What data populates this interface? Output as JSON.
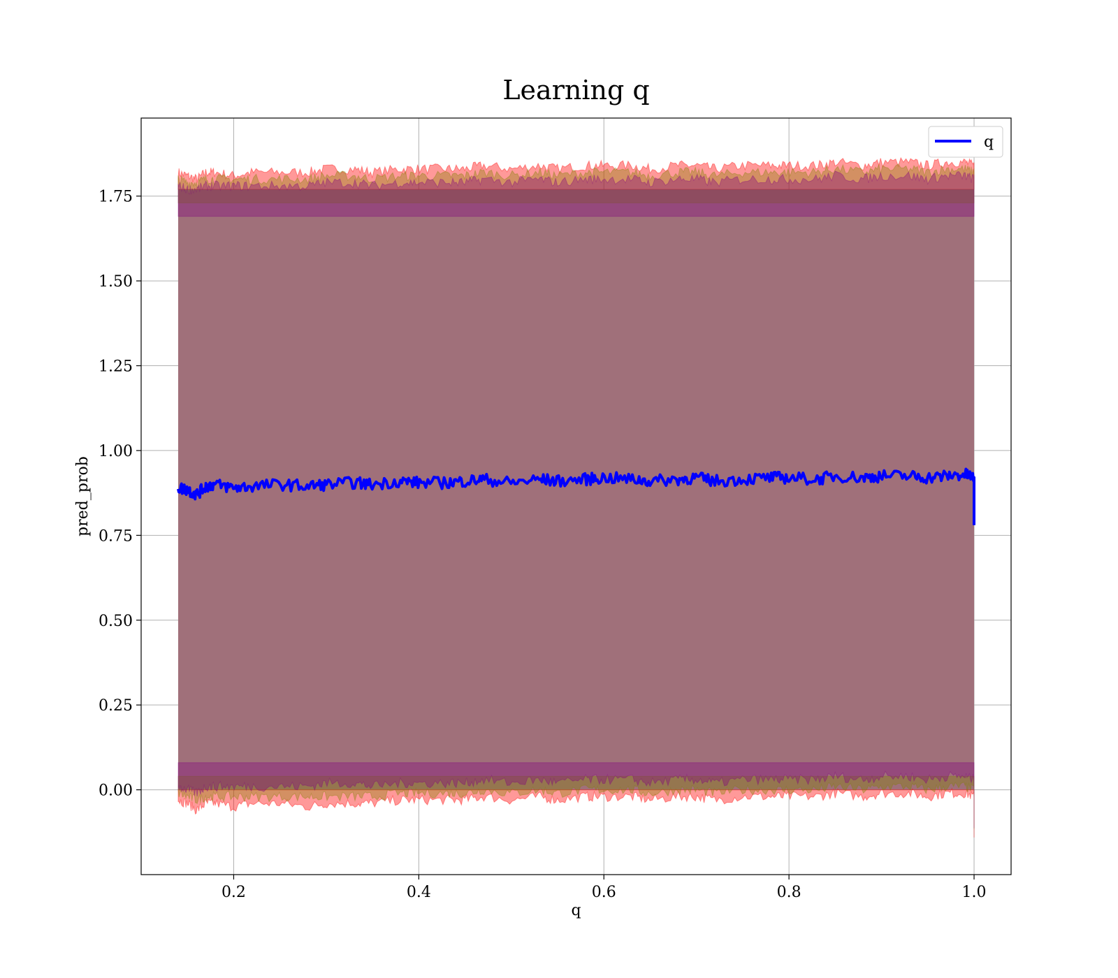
{
  "chart_data": {
    "type": "line",
    "title": "Learning q",
    "xlabel": "q",
    "ylabel": "pred_prob",
    "xlim": [
      0.1,
      1.04
    ],
    "ylim": [
      -0.25,
      1.98
    ],
    "xticks": [
      0.2,
      0.4,
      0.6,
      0.8,
      1.0
    ],
    "xtick_labels": [
      "0.2",
      "0.4",
      "0.6",
      "0.8",
      "1.0"
    ],
    "yticks": [
      0.0,
      0.25,
      0.5,
      0.75,
      1.0,
      1.25,
      1.5,
      1.75
    ],
    "ytick_labels": [
      "0.00",
      "0.25",
      "0.50",
      "0.75",
      "1.00",
      "1.25",
      "1.50",
      "1.75"
    ],
    "grid": true,
    "legend": {
      "position": "top-right",
      "entries": [
        "q"
      ]
    },
    "x_range": [
      0.14,
      1.0
    ],
    "series": [
      {
        "name": "q",
        "color": "#0000ff",
        "x": [
          0.14,
          0.15,
          0.16,
          0.17,
          0.18,
          0.2,
          0.22,
          0.25,
          0.28,
          0.3,
          0.33,
          0.35,
          0.38,
          0.4,
          0.43,
          0.45,
          0.47,
          0.5,
          0.53,
          0.55,
          0.58,
          0.6,
          0.63,
          0.65,
          0.68,
          0.7,
          0.72,
          0.75,
          0.78,
          0.8,
          0.83,
          0.85,
          0.88,
          0.9,
          0.93,
          0.95,
          0.97,
          0.99,
          1.0,
          1.0
        ],
        "values": [
          0.89,
          0.885,
          0.87,
          0.895,
          0.9,
          0.89,
          0.895,
          0.9,
          0.895,
          0.9,
          0.905,
          0.9,
          0.91,
          0.905,
          0.905,
          0.91,
          0.915,
          0.905,
          0.915,
          0.91,
          0.915,
          0.92,
          0.915,
          0.91,
          0.915,
          0.92,
          0.91,
          0.915,
          0.92,
          0.92,
          0.915,
          0.925,
          0.92,
          0.925,
          0.925,
          0.92,
          0.925,
          0.93,
          0.92,
          0.78
        ]
      }
    ],
    "bands": [
      {
        "color": "#ff0000",
        "opacity": 0.4,
        "upper_values": [
          1.82,
          1.81,
          1.8,
          1.82,
          1.82,
          1.81,
          1.82,
          1.82,
          1.82,
          1.83,
          1.83,
          1.82,
          1.83,
          1.83,
          1.83,
          1.83,
          1.84,
          1.83,
          1.84,
          1.83,
          1.84,
          1.84,
          1.84,
          1.83,
          1.84,
          1.84,
          1.83,
          1.84,
          1.84,
          1.84,
          1.84,
          1.85,
          1.84,
          1.85,
          1.85,
          1.84,
          1.85,
          1.85,
          1.84,
          1.84
        ],
        "lower_values": [
          -0.03,
          -0.04,
          -0.06,
          -0.04,
          -0.04,
          -0.05,
          -0.04,
          -0.04,
          -0.05,
          -0.04,
          -0.04,
          -0.04,
          -0.03,
          -0.03,
          -0.03,
          -0.03,
          -0.02,
          -0.03,
          -0.02,
          -0.03,
          -0.02,
          -0.02,
          -0.02,
          -0.03,
          -0.02,
          -0.02,
          -0.03,
          -0.02,
          -0.02,
          -0.02,
          -0.02,
          -0.01,
          -0.02,
          -0.01,
          -0.01,
          -0.02,
          -0.01,
          -0.01,
          -0.02,
          -0.15
        ]
      },
      {
        "color": "#808000",
        "opacity": 0.35,
        "upper_values": [
          1.8,
          1.79,
          1.79,
          1.8,
          1.8,
          1.8,
          1.8,
          1.8,
          1.8,
          1.81,
          1.81,
          1.8,
          1.81,
          1.81,
          1.81,
          1.81,
          1.82,
          1.81,
          1.82,
          1.81,
          1.82,
          1.82,
          1.82,
          1.81,
          1.82,
          1.82,
          1.81,
          1.82,
          1.82,
          1.82,
          1.82,
          1.83,
          1.82,
          1.83,
          1.83,
          1.82,
          1.83,
          1.83,
          1.82,
          1.82
        ],
        "lower_values": [
          -0.01,
          -0.02,
          -0.03,
          -0.02,
          -0.02,
          -0.02,
          -0.02,
          -0.02,
          -0.02,
          -0.02,
          -0.02,
          -0.02,
          -0.01,
          -0.01,
          -0.01,
          -0.01,
          0.0,
          -0.01,
          0.0,
          -0.01,
          0.0,
          0.0,
          0.0,
          -0.01,
          0.0,
          0.0,
          -0.01,
          0.0,
          0.0,
          0.0,
          0.0,
          0.01,
          0.0,
          0.01,
          0.01,
          0.0,
          0.01,
          0.01,
          0.0,
          -0.12
        ]
      },
      {
        "color": "#800080",
        "opacity": 0.35,
        "upper_values": [
          1.78,
          1.77,
          1.77,
          1.78,
          1.78,
          1.78,
          1.78,
          1.78,
          1.78,
          1.79,
          1.79,
          1.78,
          1.79,
          1.79,
          1.79,
          1.79,
          1.8,
          1.79,
          1.8,
          1.79,
          1.8,
          1.8,
          1.8,
          1.79,
          1.8,
          1.8,
          1.79,
          1.8,
          1.8,
          1.8,
          1.8,
          1.81,
          1.8,
          1.81,
          1.81,
          1.8,
          1.81,
          1.81,
          1.8,
          1.8
        ],
        "lower_values": [
          0.01,
          0.0,
          -0.01,
          0.01,
          0.01,
          0.01,
          0.01,
          0.01,
          0.01,
          0.02,
          0.02,
          0.01,
          0.02,
          0.02,
          0.02,
          0.02,
          0.03,
          0.02,
          0.03,
          0.02,
          0.03,
          0.03,
          0.03,
          0.02,
          0.03,
          0.03,
          0.02,
          0.03,
          0.03,
          0.03,
          0.03,
          0.04,
          0.03,
          0.04,
          0.04,
          0.03,
          0.04,
          0.04,
          0.03,
          -0.1
        ]
      }
    ],
    "base_band": {
      "color": "#a0707a",
      "upper": 1.77,
      "lower": 0.0
    }
  }
}
